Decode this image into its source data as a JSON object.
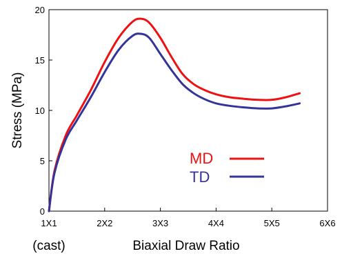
{
  "chart_data": {
    "type": "line",
    "xlabel": "Biaxial Draw Ratio",
    "ylabel": "Stress (MPa)",
    "x_ticks": [
      {
        "value": 1,
        "label": "1X1"
      },
      {
        "value": 2,
        "label": "2X2"
      },
      {
        "value": 3,
        "label": "3X3"
      },
      {
        "value": 4,
        "label": "4X4"
      },
      {
        "value": 5,
        "label": "5X5"
      },
      {
        "value": 6,
        "label": "6X6"
      }
    ],
    "x_sublabel": "(cast)",
    "y_ticks": [
      0,
      5,
      10,
      15,
      20
    ],
    "xlim": [
      1,
      6
    ],
    "ylim": [
      0,
      20
    ],
    "grid": false,
    "legend_position": "center-right",
    "series": [
      {
        "name": "MD",
        "color": "#ee1111",
        "x": [
          1.0,
          1.1,
          1.3,
          1.5,
          1.75,
          2.0,
          2.25,
          2.5,
          2.65,
          2.8,
          3.0,
          3.2,
          3.4,
          3.6,
          3.8,
          4.0,
          4.25,
          4.5,
          4.75,
          5.0,
          5.25,
          5.5
        ],
        "y": [
          0.0,
          4.0,
          7.5,
          9.5,
          12.0,
          14.8,
          17.2,
          18.8,
          19.1,
          18.7,
          17.2,
          15.3,
          13.6,
          12.6,
          12.0,
          11.6,
          11.3,
          11.15,
          11.05,
          11.05,
          11.3,
          11.7
        ]
      },
      {
        "name": "TD",
        "color": "#333399",
        "x": [
          1.0,
          1.1,
          1.3,
          1.5,
          1.75,
          2.0,
          2.25,
          2.5,
          2.65,
          2.8,
          3.0,
          3.2,
          3.4,
          3.6,
          3.8,
          4.0,
          4.25,
          4.5,
          4.75,
          5.0,
          5.25,
          5.5
        ],
        "y": [
          0.0,
          3.8,
          7.1,
          9.0,
          11.3,
          13.8,
          16.0,
          17.4,
          17.6,
          17.2,
          15.6,
          14.0,
          12.6,
          11.7,
          11.1,
          10.7,
          10.45,
          10.3,
          10.2,
          10.2,
          10.4,
          10.7
        ]
      }
    ]
  }
}
